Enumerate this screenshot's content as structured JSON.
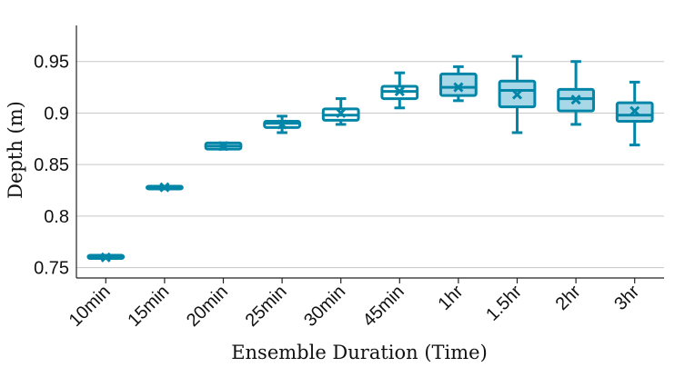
{
  "chart_data": {
    "type": "box",
    "title": "",
    "xlabel": "Ensemble Duration (Time)",
    "ylabel": "Depth (m)",
    "ylim": [
      0.74,
      0.985
    ],
    "yticks": [
      0.75,
      0.8,
      0.85,
      0.9,
      0.95
    ],
    "ytick_labels": [
      "0.75",
      "0.8",
      "0.85",
      "0.9",
      "0.95"
    ],
    "grid": "horizontal",
    "categories": [
      "10min",
      "15min",
      "20min",
      "25min",
      "30min",
      "45min",
      "1hr",
      "1.5hr",
      "2hr",
      "3hr"
    ],
    "boxes": [
      {
        "whisker_low": 0.759,
        "q1": 0.759,
        "median": 0.76,
        "q3": 0.762,
        "whisker_high": 0.762,
        "mean": 0.76
      },
      {
        "whisker_low": 0.827,
        "q1": 0.827,
        "median": 0.828,
        "q3": 0.829,
        "whisker_high": 0.829,
        "mean": 0.828
      },
      {
        "whisker_low": 0.865,
        "q1": 0.865,
        "median": 0.868,
        "q3": 0.871,
        "whisker_high": 0.871,
        "mean": 0.868
      },
      {
        "whisker_low": 0.881,
        "q1": 0.886,
        "median": 0.89,
        "q3": 0.892,
        "whisker_high": 0.897,
        "mean": 0.889
      },
      {
        "whisker_low": 0.889,
        "q1": 0.893,
        "median": 0.898,
        "q3": 0.904,
        "whisker_high": 0.914,
        "mean": 0.9
      },
      {
        "whisker_low": 0.905,
        "q1": 0.914,
        "median": 0.921,
        "q3": 0.926,
        "whisker_high": 0.939,
        "mean": 0.921
      },
      {
        "whisker_low": 0.912,
        "q1": 0.917,
        "median": 0.925,
        "q3": 0.938,
        "whisker_high": 0.945,
        "mean": 0.925
      },
      {
        "whisker_low": 0.881,
        "q1": 0.906,
        "median": 0.922,
        "q3": 0.931,
        "whisker_high": 0.955,
        "mean": 0.918
      },
      {
        "whisker_low": 0.889,
        "q1": 0.902,
        "median": 0.914,
        "q3": 0.923,
        "whisker_high": 0.95,
        "mean": 0.913
      },
      {
        "whisker_low": 0.869,
        "q1": 0.892,
        "median": 0.898,
        "q3": 0.91,
        "whisker_high": 0.93,
        "mean": 0.902
      }
    ],
    "colors": {
      "stroke": "#0286a8",
      "fill_narrow": "#ffffff",
      "fill_wide": "#a8d8e8",
      "grid": "#c8c8c8",
      "axis": "#222222"
    }
  }
}
